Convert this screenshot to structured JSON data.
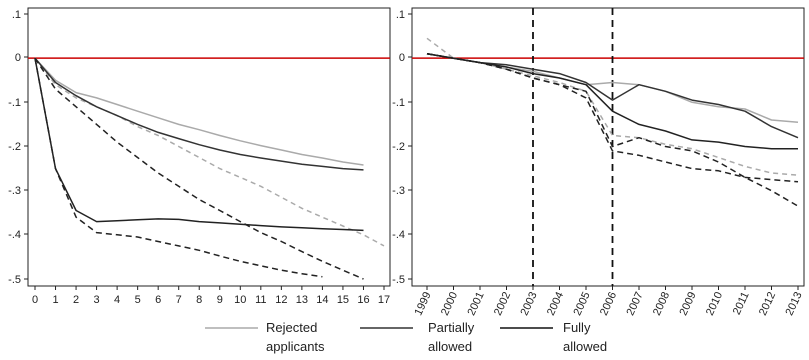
{
  "chart_data": [
    {
      "type": "line",
      "title": "",
      "xlabel": "",
      "ylabel": "",
      "x_ticks": [
        "0",
        "1",
        "2",
        "3",
        "4",
        "5",
        "6",
        "7",
        "8",
        "9",
        "10",
        "11",
        "12",
        "13",
        "14",
        "15",
        "16",
        "17"
      ],
      "y_ticks": [
        ".1",
        "0",
        "-.1",
        "-.2",
        "-.3",
        "-.4",
        "-.5"
      ],
      "xlim": [
        0,
        17
      ],
      "ylim": [
        -0.51,
        0.11
      ],
      "reference_line": {
        "y": 0,
        "color": "#cc0000"
      },
      "series": [
        {
          "style": "rejected-solid",
          "color": "#aaaaaa",
          "dash": "none",
          "x": [
            0,
            1,
            2,
            3,
            4,
            5,
            6,
            7,
            8,
            9,
            10,
            11,
            12,
            13,
            14,
            15,
            16
          ],
          "y": [
            0,
            -0.05,
            -0.078,
            -0.09,
            -0.105,
            -0.12,
            -0.135,
            -0.15,
            -0.162,
            -0.175,
            -0.187,
            -0.198,
            -0.208,
            -0.218,
            -0.226,
            -0.235,
            -0.242
          ]
        },
        {
          "style": "rejected-dashed",
          "color": "#aaaaaa",
          "dash": "5,4",
          "x": [
            0,
            1,
            2,
            3,
            4,
            5,
            6,
            7,
            8,
            9,
            10,
            11,
            12,
            13,
            14,
            15,
            16,
            17
          ],
          "y": [
            0,
            -0.06,
            -0.09,
            -0.11,
            -0.13,
            -0.155,
            -0.175,
            -0.2,
            -0.225,
            -0.25,
            -0.27,
            -0.29,
            -0.315,
            -0.34,
            -0.36,
            -0.38,
            -0.4,
            -0.425
          ]
        },
        {
          "style": "partial-solid",
          "color": "#333333",
          "dash": "none",
          "x": [
            0,
            1,
            2,
            3,
            4,
            5,
            6,
            7,
            8,
            9,
            10,
            11,
            12,
            13,
            14,
            15,
            16
          ],
          "y": [
            0,
            -0.055,
            -0.085,
            -0.11,
            -0.13,
            -0.15,
            -0.168,
            -0.182,
            -0.196,
            -0.208,
            -0.218,
            -0.226,
            -0.233,
            -0.24,
            -0.245,
            -0.25,
            -0.253
          ]
        },
        {
          "style": "partial-dashed",
          "color": "#222222",
          "dash": "6,4",
          "x": [
            0,
            1,
            2,
            3,
            4,
            5,
            6,
            7,
            8,
            9,
            10,
            11,
            12,
            13,
            14,
            15,
            16
          ],
          "y": [
            0,
            -0.07,
            -0.11,
            -0.15,
            -0.19,
            -0.225,
            -0.26,
            -0.29,
            -0.32,
            -0.345,
            -0.37,
            -0.395,
            -0.415,
            -0.438,
            -0.46,
            -0.48,
            -0.5
          ]
        },
        {
          "style": "full-solid",
          "color": "#222222",
          "dash": "none",
          "x": [
            0,
            1,
            2,
            3,
            4,
            5,
            6,
            7,
            8,
            9,
            10,
            11,
            12,
            13,
            14,
            15,
            16
          ],
          "y": [
            0,
            -0.25,
            -0.345,
            -0.37,
            -0.368,
            -0.366,
            -0.364,
            -0.365,
            -0.37,
            -0.373,
            -0.376,
            -0.379,
            -0.382,
            -0.384,
            -0.386,
            -0.388,
            -0.39
          ]
        },
        {
          "style": "full-dashed",
          "color": "#222222",
          "dash": "6,4",
          "x": [
            0,
            1,
            2,
            3,
            4,
            5,
            6,
            7,
            8,
            9,
            10,
            11,
            12,
            13,
            14
          ],
          "y": [
            0,
            -0.25,
            -0.36,
            -0.395,
            -0.4,
            -0.405,
            -0.415,
            -0.425,
            -0.435,
            -0.448,
            -0.46,
            -0.47,
            -0.48,
            -0.488,
            -0.495
          ]
        }
      ]
    },
    {
      "type": "line",
      "title": "",
      "xlabel": "",
      "ylabel": "",
      "x_ticks": [
        "1999",
        "2000",
        "2001",
        "2002",
        "2003",
        "2004",
        "2005",
        "2006",
        "2007",
        "2008",
        "2009",
        "2010",
        "2011",
        "2012",
        "2013"
      ],
      "y_ticks": [
        ".1",
        "0",
        "-.1",
        "-.2",
        "-.3",
        "-.4",
        "-.5"
      ],
      "xlim": [
        1999,
        2013
      ],
      "ylim": [
        -0.51,
        0.11
      ],
      "reference_line": {
        "y": 0,
        "color": "#cc0000"
      },
      "vertical_lines": [
        2003,
        2006
      ],
      "series": [
        {
          "style": "rejected-solid",
          "color": "#aaaaaa",
          "dash": "none",
          "x": [
            1999,
            2000,
            2001,
            2002,
            2003,
            2004,
            2005,
            2006,
            2007,
            2008,
            2009,
            2010,
            2011,
            2012,
            2013
          ],
          "y": [
            0.01,
            0.0,
            -0.01,
            -0.02,
            -0.03,
            -0.045,
            -0.06,
            -0.055,
            -0.06,
            -0.075,
            -0.1,
            -0.11,
            -0.115,
            -0.14,
            -0.145
          ]
        },
        {
          "style": "rejected-dashed",
          "color": "#aaaaaa",
          "dash": "5,4",
          "x": [
            1999,
            2000,
            2001,
            2002,
            2003,
            2004,
            2005,
            2006,
            2007,
            2008,
            2009,
            2010,
            2011,
            2012,
            2013
          ],
          "y": [
            0.045,
            0.0,
            -0.01,
            -0.025,
            -0.04,
            -0.055,
            -0.075,
            -0.175,
            -0.18,
            -0.195,
            -0.205,
            -0.225,
            -0.245,
            -0.26,
            -0.265
          ]
        },
        {
          "style": "partial-solid",
          "color": "#333333",
          "dash": "none",
          "x": [
            1999,
            2000,
            2001,
            2002,
            2003,
            2004,
            2005,
            2006,
            2007,
            2008,
            2009,
            2010,
            2011,
            2012,
            2013
          ],
          "y": [
            0.01,
            0.0,
            -0.01,
            -0.015,
            -0.025,
            -0.035,
            -0.055,
            -0.095,
            -0.06,
            -0.075,
            -0.095,
            -0.105,
            -0.12,
            -0.155,
            -0.18
          ]
        },
        {
          "style": "partial-dashed",
          "color": "#222222",
          "dash": "6,4",
          "x": [
            1999,
            2000,
            2001,
            2002,
            2003,
            2004,
            2005,
            2006,
            2007,
            2008,
            2009,
            2010,
            2011,
            2012,
            2013
          ],
          "y": [
            0.01,
            0.0,
            -0.01,
            -0.025,
            -0.045,
            -0.06,
            -0.075,
            -0.2,
            -0.18,
            -0.2,
            -0.21,
            -0.235,
            -0.27,
            -0.3,
            -0.335
          ]
        },
        {
          "style": "full-solid",
          "color": "#222222",
          "dash": "none",
          "x": [
            1999,
            2000,
            2001,
            2002,
            2003,
            2004,
            2005,
            2006,
            2007,
            2008,
            2009,
            2010,
            2011,
            2012,
            2013
          ],
          "y": [
            0.01,
            0.0,
            -0.01,
            -0.02,
            -0.035,
            -0.045,
            -0.06,
            -0.12,
            -0.15,
            -0.165,
            -0.185,
            -0.19,
            -0.2,
            -0.205,
            -0.205
          ]
        },
        {
          "style": "full-dashed",
          "color": "#222222",
          "dash": "6,4",
          "x": [
            1999,
            2000,
            2001,
            2002,
            2003,
            2004,
            2005,
            2006,
            2007,
            2008,
            2009,
            2010,
            2011,
            2012,
            2013
          ],
          "y": [
            0.01,
            0.0,
            -0.01,
            -0.025,
            -0.045,
            -0.06,
            -0.09,
            -0.21,
            -0.22,
            -0.235,
            -0.25,
            -0.255,
            -0.27,
            -0.275,
            -0.28
          ]
        }
      ]
    }
  ],
  "legend": [
    {
      "line1": "Rejected",
      "line2": "applicants",
      "color": "#aaaaaa"
    },
    {
      "line1": "Partially",
      "line2": "allowed",
      "color": "#333333"
    },
    {
      "line1": "Fully",
      "line2": "allowed",
      "color": "#111111"
    }
  ]
}
